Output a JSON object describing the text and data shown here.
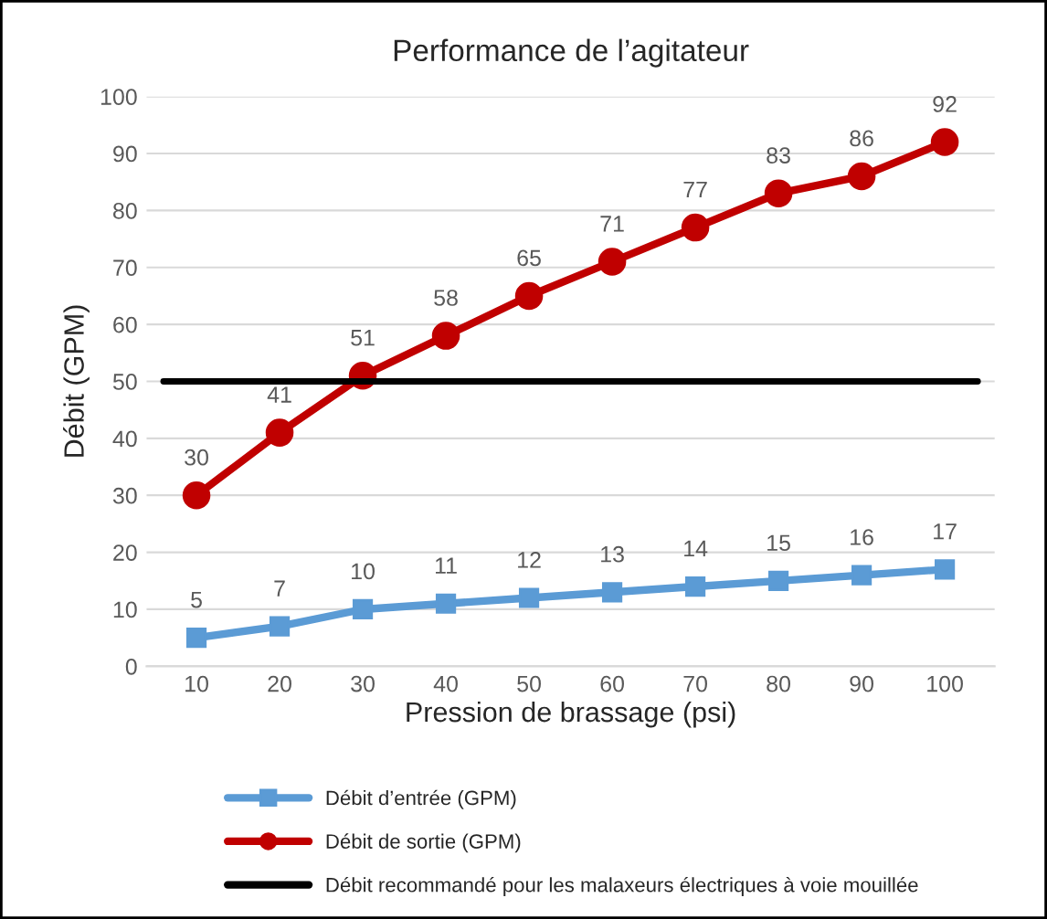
{
  "chart_data": {
    "type": "line",
    "title": "Performance de l’agitateur",
    "xlabel": "Pression de brassage (psi)",
    "ylabel": "Débit (GPM)",
    "categories": [
      "10",
      "20",
      "30",
      "40",
      "50",
      "60",
      "70",
      "80",
      "90",
      "100"
    ],
    "series": [
      {
        "name": "Débit d’entrée (GPM)",
        "color": "#5b9bd5",
        "marker": "square",
        "values": [
          5,
          7,
          10,
          11,
          12,
          13,
          14,
          15,
          16,
          17
        ]
      },
      {
        "name": "Débit de sortie (GPM)",
        "color": "#c00000",
        "marker": "circle",
        "values": [
          30,
          41,
          51,
          58,
          65,
          71,
          77,
          83,
          86,
          92
        ]
      }
    ],
    "ref_lines": [
      {
        "axis": "y",
        "value": 50,
        "label": "Débit recommandé pour les malaxeurs électriques à voie mouillée",
        "color": "#000000",
        "line_style": "solid"
      }
    ],
    "ylim": [
      0,
      100
    ],
    "yticks": [
      0,
      10,
      20,
      30,
      40,
      50,
      60,
      70,
      80,
      90,
      100
    ],
    "grid": "y",
    "legend": "bottom",
    "data_labels": true,
    "line_style": "solid"
  }
}
